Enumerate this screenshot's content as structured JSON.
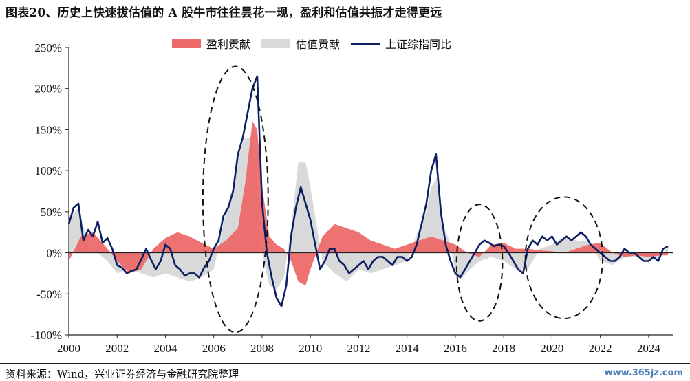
{
  "header": {
    "title": "图表20、历史上快速拔估值的 A 股牛市往往昙花一现，盈利和估值共振才走得更远"
  },
  "footer": {
    "source": "资料来源：Wind，兴业证券经济与金融研究院整理",
    "watermark": "www.365jz.com"
  },
  "chart_data": {
    "type": "area",
    "title": "",
    "xlabel": "",
    "ylabel": "",
    "xlim": [
      2000,
      2025
    ],
    "ylim": [
      -100,
      250
    ],
    "x_tick_labels": [
      "2000",
      "2002",
      "2004",
      "2006",
      "2008",
      "2010",
      "2012",
      "2014",
      "2016",
      "2018",
      "2020",
      "2022",
      "2024"
    ],
    "y_tick_labels": [
      "250%",
      "200%",
      "150%",
      "100%",
      "50%",
      "0%",
      "-50%",
      "-100%"
    ],
    "y_ticks": [
      250,
      200,
      150,
      100,
      50,
      0,
      -50,
      -100
    ],
    "legend_position": "top",
    "colors": {
      "earnings": "#ee6a6a",
      "valuation": "#d9d9d9",
      "index": "#0d1f63",
      "axis": "#222222",
      "ellipse": "#111111"
    },
    "series": [
      {
        "name": "盈利贡献",
        "kind": "area",
        "x": [
          2000.0,
          2000.5,
          2001.0,
          2001.3,
          2001.6,
          2002.0,
          2002.5,
          2003.0,
          2003.5,
          2004.0,
          2004.5,
          2005.0,
          2005.5,
          2006.0,
          2006.5,
          2007.0,
          2007.3,
          2007.6,
          2007.8,
          2008.0,
          2008.3,
          2008.6,
          2008.9,
          2009.2,
          2009.5,
          2009.8,
          2010.0,
          2010.5,
          2011.0,
          2011.5,
          2012.0,
          2012.5,
          2013.0,
          2013.5,
          2014.0,
          2014.5,
          2015.0,
          2015.5,
          2016.0,
          2016.5,
          2017.0,
          2017.5,
          2018.0,
          2018.5,
          2019.0,
          2019.5,
          2020.0,
          2020.5,
          2021.0,
          2021.5,
          2022.0,
          2022.5,
          2023.0,
          2023.5,
          2024.0,
          2024.5,
          2024.8
        ],
        "values": [
          -10,
          20,
          25,
          15,
          5,
          -10,
          -25,
          -20,
          5,
          18,
          25,
          20,
          12,
          5,
          15,
          30,
          85,
          160,
          150,
          80,
          20,
          10,
          5,
          -10,
          -35,
          -40,
          -20,
          20,
          35,
          30,
          25,
          15,
          10,
          5,
          10,
          15,
          20,
          15,
          10,
          0,
          -5,
          10,
          12,
          5,
          5,
          3,
          2,
          0,
          5,
          10,
          12,
          0,
          -5,
          -3,
          -5,
          -3,
          -3
        ]
      },
      {
        "name": "估值贡献",
        "kind": "area",
        "x": [
          2000.0,
          2000.4,
          2000.8,
          2001.2,
          2001.6,
          2002.0,
          2002.5,
          2003.0,
          2003.5,
          2004.0,
          2004.5,
          2005.0,
          2005.5,
          2006.0,
          2006.5,
          2006.8,
          2007.0,
          2007.3,
          2007.6,
          2007.8,
          2008.0,
          2008.3,
          2008.6,
          2008.9,
          2009.2,
          2009.5,
          2009.8,
          2010.0,
          2010.5,
          2011.0,
          2011.5,
          2012.0,
          2012.5,
          2013.0,
          2013.5,
          2014.0,
          2014.5,
          2014.8,
          2015.0,
          2015.3,
          2015.5,
          2015.8,
          2016.0,
          2016.3,
          2016.6,
          2017.0,
          2017.5,
          2018.0,
          2018.5,
          2019.0,
          2019.5,
          2020.0,
          2020.5,
          2021.0,
          2021.5,
          2022.0,
          2022.5,
          2023.0,
          2023.5,
          2024.0,
          2024.5,
          2024.8
        ],
        "values": [
          40,
          55,
          10,
          0,
          -10,
          -25,
          -20,
          -25,
          -30,
          -25,
          -30,
          -35,
          -30,
          -20,
          50,
          80,
          120,
          140,
          140,
          80,
          0,
          -40,
          -45,
          -30,
          30,
          110,
          110,
          80,
          -10,
          -25,
          -35,
          -20,
          -25,
          -20,
          -15,
          -10,
          30,
          50,
          80,
          95,
          35,
          10,
          -25,
          -30,
          -20,
          -10,
          -5,
          -10,
          -20,
          -20,
          5,
          10,
          20,
          15,
          15,
          -10,
          -15,
          -5,
          -5,
          -10,
          -5,
          8
        ]
      },
      {
        "name": "上证综指同比",
        "kind": "line",
        "x": [
          2000.0,
          2000.2,
          2000.4,
          2000.6,
          2000.8,
          2001.0,
          2001.2,
          2001.4,
          2001.6,
          2001.8,
          2002.0,
          2002.2,
          2002.4,
          2002.6,
          2002.8,
          2003.0,
          2003.2,
          2003.4,
          2003.6,
          2003.8,
          2004.0,
          2004.2,
          2004.4,
          2004.6,
          2004.8,
          2005.0,
          2005.2,
          2005.4,
          2005.6,
          2005.8,
          2006.0,
          2006.2,
          2006.4,
          2006.6,
          2006.8,
          2007.0,
          2007.2,
          2007.4,
          2007.6,
          2007.8,
          2008.0,
          2008.2,
          2008.4,
          2008.6,
          2008.8,
          2009.0,
          2009.2,
          2009.4,
          2009.6,
          2009.8,
          2010.0,
          2010.2,
          2010.4,
          2010.6,
          2010.8,
          2011.0,
          2011.2,
          2011.4,
          2011.6,
          2011.8,
          2012.0,
          2012.2,
          2012.4,
          2012.6,
          2012.8,
          2013.0,
          2013.2,
          2013.4,
          2013.6,
          2013.8,
          2014.0,
          2014.2,
          2014.4,
          2014.6,
          2014.8,
          2015.0,
          2015.2,
          2015.4,
          2015.6,
          2015.8,
          2016.0,
          2016.2,
          2016.4,
          2016.6,
          2016.8,
          2017.0,
          2017.2,
          2017.4,
          2017.6,
          2017.8,
          2018.0,
          2018.2,
          2018.4,
          2018.6,
          2018.8,
          2019.0,
          2019.2,
          2019.4,
          2019.6,
          2019.8,
          2020.0,
          2020.2,
          2020.4,
          2020.6,
          2020.8,
          2021.0,
          2021.2,
          2021.4,
          2021.6,
          2021.8,
          2022.0,
          2022.2,
          2022.4,
          2022.6,
          2022.8,
          2023.0,
          2023.2,
          2023.4,
          2023.6,
          2023.8,
          2024.0,
          2024.2,
          2024.4,
          2024.6,
          2024.8
        ],
        "values": [
          35,
          55,
          60,
          15,
          28,
          20,
          38,
          12,
          18,
          5,
          -15,
          -18,
          -25,
          -22,
          -20,
          -8,
          5,
          -8,
          -20,
          -10,
          10,
          5,
          -15,
          -20,
          -28,
          -25,
          -25,
          -30,
          -18,
          -10,
          5,
          15,
          45,
          55,
          75,
          120,
          140,
          170,
          200,
          215,
          60,
          0,
          -30,
          -55,
          -65,
          -40,
          20,
          55,
          80,
          60,
          40,
          10,
          -20,
          -10,
          5,
          5,
          -10,
          -15,
          -25,
          -20,
          -15,
          -10,
          -20,
          -10,
          -5,
          -5,
          -10,
          -15,
          -5,
          -5,
          -10,
          -5,
          10,
          35,
          60,
          100,
          120,
          50,
          10,
          -10,
          -25,
          -30,
          -20,
          -10,
          0,
          10,
          15,
          12,
          8,
          10,
          8,
          0,
          -10,
          -20,
          -25,
          5,
          15,
          10,
          20,
          15,
          20,
          10,
          15,
          20,
          15,
          20,
          25,
          20,
          10,
          5,
          0,
          -5,
          -10,
          -10,
          -5,
          5,
          0,
          0,
          -5,
          -10,
          -10,
          -5,
          -10,
          5,
          8
        ]
      }
    ],
    "annotations": [
      {
        "kind": "dashed-ellipse",
        "cx": 2006.9,
        "cy": 65,
        "rx": 1.35,
        "ry": 162
      },
      {
        "kind": "dashed-ellipse",
        "cx": 2017.0,
        "cy": -12,
        "rx": 0.95,
        "ry": 71
      },
      {
        "kind": "dashed-ellipse",
        "cx": 2020.5,
        "cy": -6,
        "rx": 1.6,
        "ry": 74
      }
    ]
  }
}
